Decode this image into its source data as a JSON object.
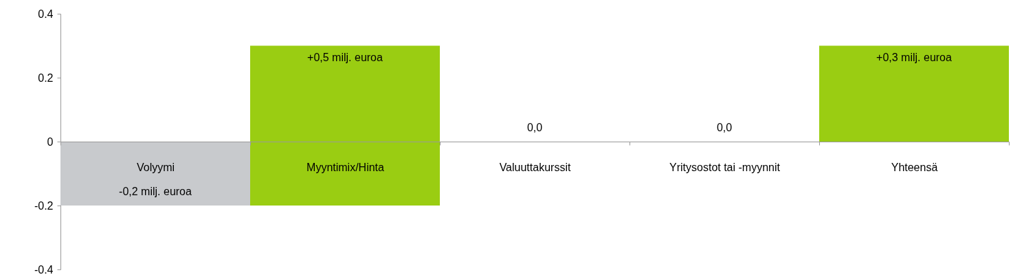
{
  "chart_data": {
    "type": "bar",
    "categories": [
      "Volyymi",
      "Myyntimix/Hinta",
      "Valuuttakurssit",
      "Yritysostot tai -myynnit",
      "Yhteensä"
    ],
    "values": [
      -0.2,
      0.5,
      0.0,
      0.0,
      0.3
    ],
    "base": [
      0,
      -0.2,
      null,
      null,
      0
    ],
    "colors": [
      "#c8cacd",
      "#9acd12",
      "#9acd12",
      "#9acd12",
      "#9acd12"
    ],
    "value_labels": [
      "-0,2 milj. euroa",
      "+0,5 milj. euroa",
      "0,0",
      "0,0",
      "+0,3 milj. euroa"
    ],
    "ylim": [
      -0.4,
      0.4
    ],
    "yticks": [
      -0.4,
      -0.2,
      {
        "value": 0,
        "label": "0"
      },
      0.2,
      0.4
    ],
    "grid": false,
    "legend": false
  }
}
